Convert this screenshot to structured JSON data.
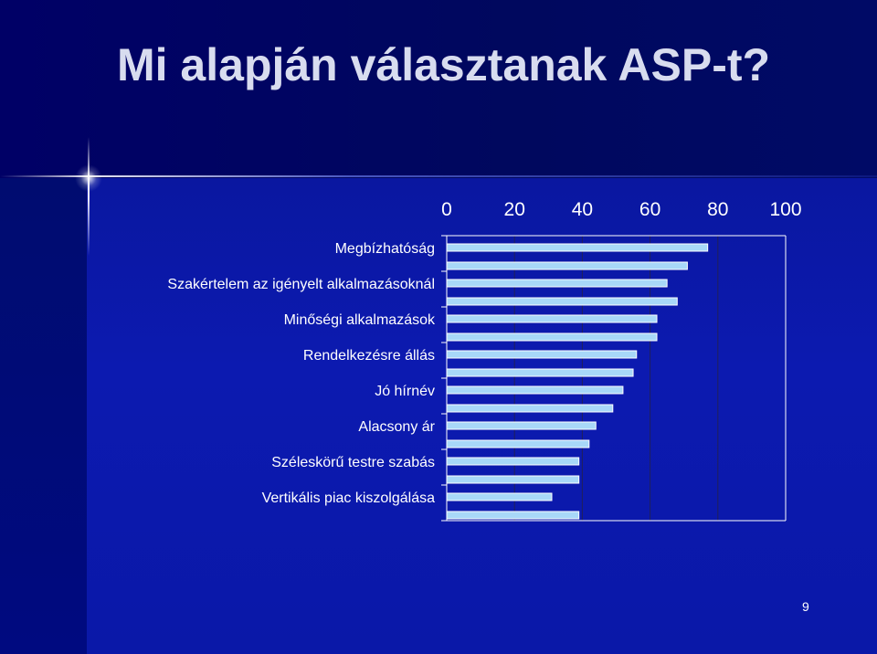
{
  "slide": {
    "title": "Mi alapján választanak ASP-t?",
    "page_number": "9"
  },
  "colors": {
    "background": "#00007a",
    "bar_fill": "#a8d8f8",
    "bar_stroke": "#ffffff",
    "text": "#ffffff"
  },
  "chart_data": {
    "type": "bar",
    "orientation": "horizontal",
    "title": "",
    "xlabel": "",
    "ylabel": "",
    "xlim": [
      0,
      100
    ],
    "x_ticks": [
      "0",
      "20",
      "40",
      "60",
      "80",
      "100"
    ],
    "x_axis_position": "top",
    "grid": true,
    "categories": [
      "Megbízhatóság",
      "Szakértelem az igényelt alkalmazásoknál",
      "Minőségi alkalmazások",
      "Rendelkezésre állás",
      "Jó hírnév",
      "Alacsony ár",
      "Széleskörű testre szabás",
      "Vertikális piac kiszolgálása"
    ],
    "series": [
      {
        "values": [
          77,
          65,
          62,
          56,
          52,
          44,
          39,
          31
        ]
      },
      {
        "values": [
          71,
          68,
          62,
          55,
          49,
          42,
          39,
          39
        ]
      }
    ]
  }
}
